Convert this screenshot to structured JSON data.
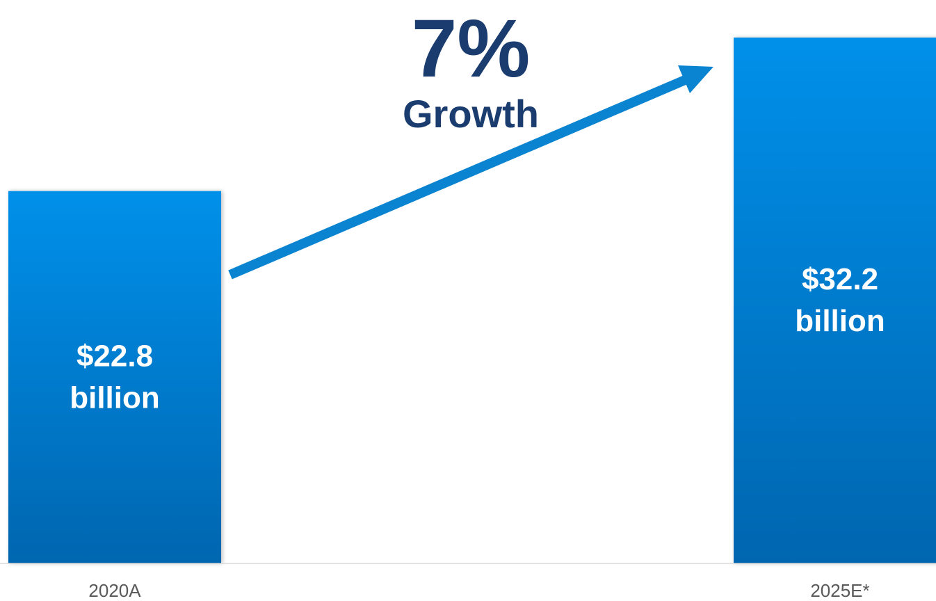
{
  "chart_data": {
    "type": "bar",
    "categories": [
      "2020A",
      "2025E*"
    ],
    "values": [
      22.8,
      32.2
    ],
    "value_labels": [
      [
        "$22.8",
        "billion"
      ],
      [
        "$32.2",
        "billion"
      ]
    ],
    "ylim": [
      0,
      32.2
    ],
    "grid": false,
    "annotation": {
      "value": "7%",
      "text": "Growth",
      "arrow": true
    }
  },
  "colors": {
    "bar_top": "#0090ea",
    "bar_bottom": "#0066b0",
    "arrow": "#0a84d0",
    "annotation_text": "#1a3c6e",
    "axis": "#d9d9d9"
  }
}
